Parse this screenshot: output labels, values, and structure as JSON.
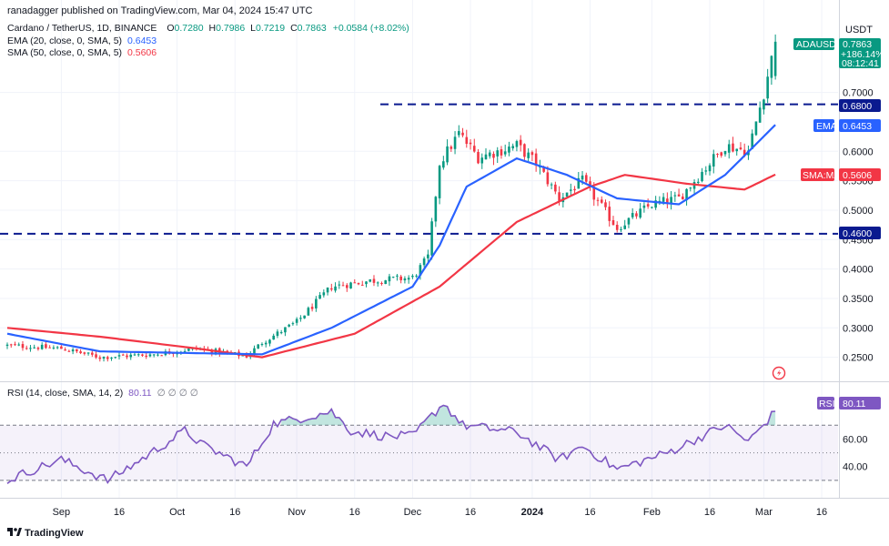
{
  "header": {
    "published": "ranadagger published on TradingView.com, Mar 04, 2024 15:47 UTC",
    "symbol_line": "Cardano / TetherUS, 1D, BINANCE",
    "ohlc": {
      "o_label": "O",
      "o": "0.7280",
      "h_label": "H",
      "h": "0.7986",
      "l_label": "L",
      "l": "0.7219",
      "c_label": "C",
      "c": "0.7863",
      "change": "+0.0584 (+8.02%)"
    },
    "ema_line": {
      "label": "EMA (20, close, 0, SMA, 5)",
      "value": "0.6453"
    },
    "sma_line": {
      "label": "SMA (50, close, 0, SMA, 5)",
      "value": "0.5606"
    },
    "rsi_line": {
      "label": "RSI (14, close, SMA, 14, 2)",
      "value": "80.11",
      "extra": "∅ ∅ ∅ ∅"
    }
  },
  "currency": "USDT",
  "price_tag": {
    "symbol": "ADAUSDT",
    "price": "0.7863",
    "change": "+186.14%",
    "countdown": "08:12:41"
  },
  "tags": {
    "level_high": "0.6800",
    "ema_label": "EMA",
    "ema_value": "0.6453",
    "sma_label": "SMA:MA",
    "sma_value": "0.5606",
    "level_low": "0.4600",
    "rsi_label": "RSI",
    "rsi_value": "80.11"
  },
  "price_ticks": [
    "0.7000",
    "0.6000",
    "0.5500",
    "0.5000",
    "0.4500",
    "0.4000",
    "0.3500",
    "0.3000",
    "0.2500"
  ],
  "rsi_ticks": [
    "60.00",
    "40.00"
  ],
  "date_ticks": [
    "Sep",
    "16",
    "Oct",
    "16",
    "Nov",
    "16",
    "Dec",
    "16",
    "2024",
    "16",
    "Feb",
    "16",
    "Mar",
    "16"
  ],
  "footer": {
    "brand": "TradingView"
  },
  "colors": {
    "up": "#089981",
    "down": "#f23645",
    "ema": "#2962ff",
    "sma": "#f23645",
    "level": "#0a1a8f",
    "rsi": "#7e57c2"
  },
  "chart_data": {
    "type": "candlestick",
    "symbol": "ADAUSDT",
    "interval": "1D",
    "price_range": [
      0.22,
      0.8
    ],
    "x": [
      "Sep",
      "16",
      "Oct",
      "16",
      "Nov",
      "16",
      "Dec",
      "16",
      "2024",
      "16",
      "Feb",
      "16",
      "Mar",
      "16"
    ],
    "close_anchors": [
      {
        "date": "2023-08-18",
        "close": 0.27
      },
      {
        "date": "2023-09-01",
        "close": 0.265
      },
      {
        "date": "2023-09-11",
        "close": 0.25
      },
      {
        "date": "2023-09-25",
        "close": 0.255
      },
      {
        "date": "2023-10-06",
        "close": 0.265
      },
      {
        "date": "2023-10-19",
        "close": 0.252
      },
      {
        "date": "2023-10-23",
        "close": 0.275
      },
      {
        "date": "2023-11-01",
        "close": 0.31
      },
      {
        "date": "2023-11-10",
        "close": 0.37
      },
      {
        "date": "2023-11-20",
        "close": 0.38
      },
      {
        "date": "2023-12-01",
        "close": 0.385
      },
      {
        "date": "2023-12-05",
        "close": 0.42
      },
      {
        "date": "2023-12-08",
        "close": 0.58
      },
      {
        "date": "2023-12-13",
        "close": 0.63
      },
      {
        "date": "2023-12-18",
        "close": 0.59
      },
      {
        "date": "2023-12-28",
        "close": 0.61
      },
      {
        "date": "2024-01-02",
        "close": 0.58
      },
      {
        "date": "2024-01-08",
        "close": 0.52
      },
      {
        "date": "2024-01-14",
        "close": 0.55
      },
      {
        "date": "2024-01-23",
        "close": 0.47
      },
      {
        "date": "2024-02-01",
        "close": 0.51
      },
      {
        "date": "2024-02-08",
        "close": 0.52
      },
      {
        "date": "2024-02-20",
        "close": 0.61
      },
      {
        "date": "2024-02-26",
        "close": 0.6
      },
      {
        "date": "2024-03-01",
        "close": 0.7
      },
      {
        "date": "2024-03-04",
        "close": 0.786
      }
    ],
    "last_candle": {
      "date": "2024-03-04",
      "open": 0.728,
      "high": 0.7986,
      "low": 0.7219,
      "close": 0.7863
    },
    "horizontal_levels": [
      0.68,
      0.46
    ],
    "series": [
      {
        "name": "EMA (20, close, 0, SMA, 5)",
        "last": 0.6453,
        "anchors": [
          {
            "date": "2023-08-18",
            "value": 0.29
          },
          {
            "date": "2023-09-11",
            "value": 0.26
          },
          {
            "date": "2023-10-06",
            "value": 0.257
          },
          {
            "date": "2023-10-23",
            "value": 0.255
          },
          {
            "date": "2023-11-10",
            "value": 0.3
          },
          {
            "date": "2023-12-01",
            "value": 0.37
          },
          {
            "date": "2023-12-08",
            "value": 0.44
          },
          {
            "date": "2023-12-15",
            "value": 0.54
          },
          {
            "date": "2023-12-28",
            "value": 0.588
          },
          {
            "date": "2024-01-10",
            "value": 0.56
          },
          {
            "date": "2024-01-23",
            "value": 0.52
          },
          {
            "date": "2024-02-08",
            "value": 0.51
          },
          {
            "date": "2024-02-20",
            "value": 0.56
          },
          {
            "date": "2024-03-04",
            "value": 0.645
          }
        ]
      },
      {
        "name": "SMA (50, close, 0, SMA, 5)",
        "last": 0.5606,
        "anchors": [
          {
            "date": "2023-08-18",
            "value": 0.3
          },
          {
            "date": "2023-09-11",
            "value": 0.285
          },
          {
            "date": "2023-10-06",
            "value": 0.265
          },
          {
            "date": "2023-10-23",
            "value": 0.25
          },
          {
            "date": "2023-11-16",
            "value": 0.29
          },
          {
            "date": "2023-12-08",
            "value": 0.37
          },
          {
            "date": "2023-12-28",
            "value": 0.48
          },
          {
            "date": "2024-01-16",
            "value": 0.54
          },
          {
            "date": "2024-01-25",
            "value": 0.56
          },
          {
            "date": "2024-02-10",
            "value": 0.545
          },
          {
            "date": "2024-02-25",
            "value": 0.535
          },
          {
            "date": "2024-03-04",
            "value": 0.5606
          }
        ]
      }
    ],
    "rsi": {
      "name": "RSI (14, close, SMA, 14, 2)",
      "last": 80.11,
      "range": [
        20,
        90
      ],
      "bands": [
        70,
        50,
        30
      ],
      "anchors": [
        {
          "date": "2023-08-18",
          "value": 30
        },
        {
          "date": "2023-08-25",
          "value": 38
        },
        {
          "date": "2023-09-01",
          "value": 45
        },
        {
          "date": "2023-09-13",
          "value": 30
        },
        {
          "date": "2023-09-20",
          "value": 42
        },
        {
          "date": "2023-10-03",
          "value": 66
        },
        {
          "date": "2023-10-08",
          "value": 55
        },
        {
          "date": "2023-10-19",
          "value": 40
        },
        {
          "date": "2023-10-26",
          "value": 71
        },
        {
          "date": "2023-11-10",
          "value": 80
        },
        {
          "date": "2023-11-15",
          "value": 66
        },
        {
          "date": "2023-11-24",
          "value": 62
        },
        {
          "date": "2023-12-01",
          "value": 62
        },
        {
          "date": "2023-12-09",
          "value": 86
        },
        {
          "date": "2023-12-14",
          "value": 70
        },
        {
          "date": "2023-12-28",
          "value": 65
        },
        {
          "date": "2024-01-08",
          "value": 45
        },
        {
          "date": "2024-01-14",
          "value": 55
        },
        {
          "date": "2024-01-23",
          "value": 38
        },
        {
          "date": "2024-02-05",
          "value": 50
        },
        {
          "date": "2024-02-20",
          "value": 70
        },
        {
          "date": "2024-02-26",
          "value": 58
        },
        {
          "date": "2024-03-04",
          "value": 80.11
        }
      ]
    }
  }
}
